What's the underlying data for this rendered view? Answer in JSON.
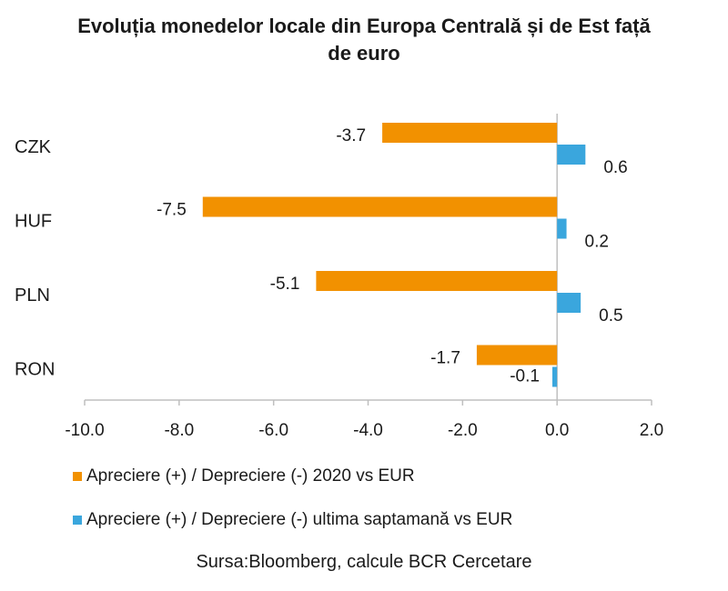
{
  "chart_data": {
    "type": "bar",
    "orientation": "horizontal",
    "title_lines": [
      "Evoluția monedelor locale din Europa Centrală și de Est față",
      "de euro"
    ],
    "categories": [
      "CZK",
      "HUF",
      "PLN",
      "RON"
    ],
    "series": [
      {
        "name": "Apreciere (+) / Depreciere (-) 2020 vs EUR",
        "values": [
          -3.7,
          -7.5,
          -5.1,
          -1.7
        ],
        "labels": [
          "-3.7",
          "-7.5",
          "-5.1",
          "-1.7"
        ],
        "color": "#F29100"
      },
      {
        "name": "Apreciere (+) / Depreciere (-) ultima saptamană vs EUR",
        "values": [
          0.6,
          0.2,
          0.5,
          -0.1
        ],
        "labels": [
          "0.6",
          "0.2",
          "0.5",
          "-0.1"
        ],
        "color": "#3AA6DD"
      }
    ],
    "xlim": [
      -10,
      2
    ],
    "xticks": [
      -10,
      -8,
      -6,
      -4,
      -2,
      0,
      2
    ],
    "xtick_labels": [
      "-10.0",
      "-8.0",
      "-6.0",
      "-4.0",
      "-2.0",
      "0.0",
      "2.0"
    ],
    "grid": false,
    "legend_position": "bottom",
    "source": "Sursa:Bloomberg, calcule BCR Cercetare"
  }
}
